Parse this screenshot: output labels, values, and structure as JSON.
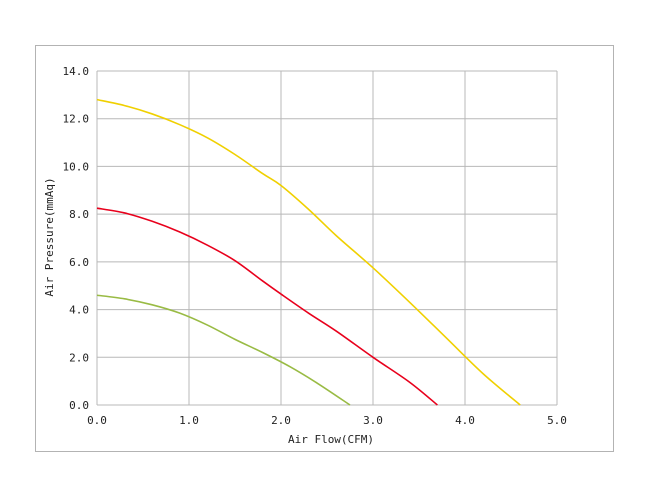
{
  "chart_data": {
    "type": "line",
    "title": "",
    "xlabel": "Air Flow(CFM)",
    "ylabel": "Air Pressure(mmAq)",
    "xlim": [
      0,
      5
    ],
    "ylim": [
      0,
      14
    ],
    "xticks": [
      0,
      1,
      2,
      3,
      4,
      5
    ],
    "yticks": [
      0,
      2,
      4,
      6,
      8,
      10,
      12,
      14
    ],
    "xtick_labels": [
      "0.0",
      "1.0",
      "2.0",
      "3.0",
      "4.0",
      "5.0"
    ],
    "ytick_labels": [
      "0.0",
      "2.0",
      "4.0",
      "6.0",
      "8.0",
      "10.0",
      "12.0",
      "14.0"
    ],
    "grid": true,
    "legend": "none",
    "series": [
      {
        "color": "#f0d000",
        "x": [
          0,
          0.3,
          0.6,
          0.9,
          1.2,
          1.5,
          1.8,
          2.0,
          2.3,
          2.6,
          3.0,
          3.4,
          3.8,
          4.2,
          4.6
        ],
        "y": [
          12.8,
          12.55,
          12.2,
          11.75,
          11.2,
          10.5,
          9.7,
          9.2,
          8.2,
          7.1,
          5.75,
          4.3,
          2.8,
          1.3,
          0
        ]
      },
      {
        "color": "#e8001c",
        "x": [
          0,
          0.3,
          0.6,
          0.9,
          1.2,
          1.5,
          1.8,
          2.0,
          2.3,
          2.6,
          3.0,
          3.4,
          3.7
        ],
        "y": [
          8.25,
          8.05,
          7.7,
          7.25,
          6.7,
          6.05,
          5.2,
          4.65,
          3.85,
          3.1,
          2.0,
          0.95,
          0
        ]
      },
      {
        "color": "#99bb44",
        "x": [
          0,
          0.3,
          0.6,
          0.9,
          1.2,
          1.5,
          1.8,
          2.1,
          2.4,
          2.75
        ],
        "y": [
          4.6,
          4.45,
          4.2,
          3.85,
          3.35,
          2.75,
          2.2,
          1.6,
          0.9,
          0
        ]
      }
    ]
  }
}
